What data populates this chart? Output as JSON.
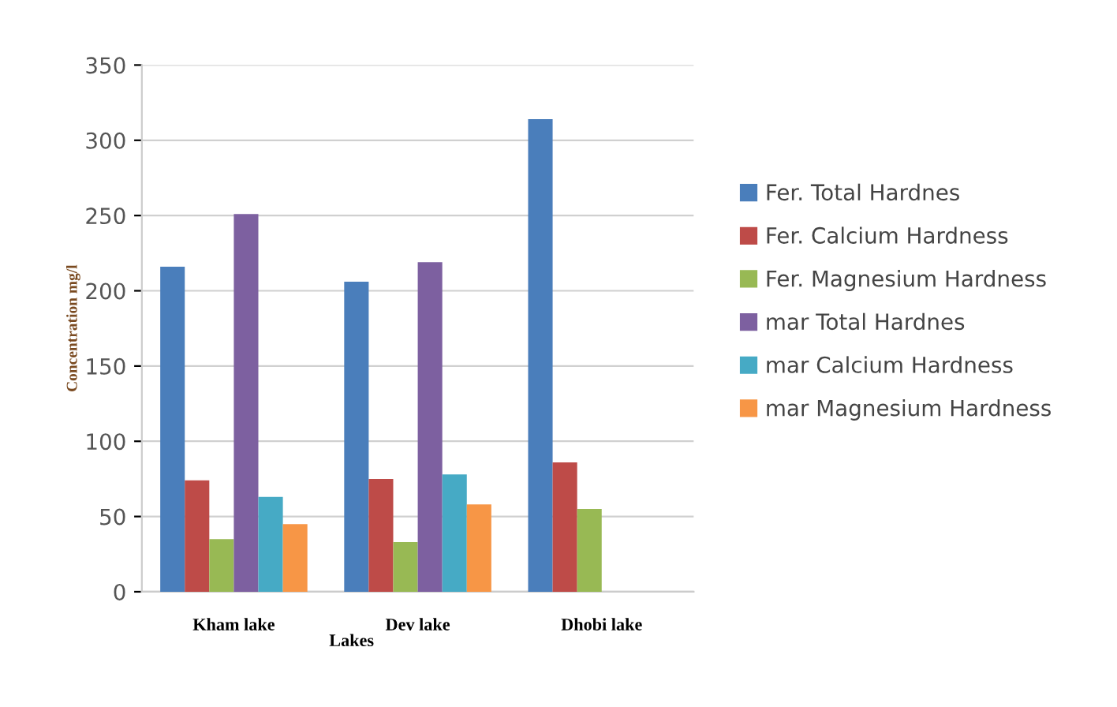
{
  "chart_data": {
    "type": "bar",
    "xlabel": "Lakes",
    "ylabel": "Concentration mg/l",
    "categories": [
      "Kham lake",
      "Dev lake",
      "Dhobi lake"
    ],
    "series": [
      {
        "name": "Fer. Total Hardnes",
        "color": "#4a7ebb",
        "values": [
          216,
          206,
          314
        ]
      },
      {
        "name": "Fer. Calcium Hardness",
        "color": "#be4b48",
        "values": [
          74,
          75,
          86
        ]
      },
      {
        "name": "Fer. Magnesium Hardness",
        "color": "#98b954",
        "values": [
          35,
          33,
          55
        ]
      },
      {
        "name": "mar Total Hardnes",
        "color": "#7d60a0",
        "values": [
          251,
          219,
          null
        ]
      },
      {
        "name": "mar Calcium Hardness",
        "color": "#46aac5",
        "values": [
          63,
          78,
          null
        ]
      },
      {
        "name": "mar Magnesium Hardness",
        "color": "#f79646",
        "values": [
          45,
          58,
          null
        ]
      }
    ],
    "ylim": [
      0,
      350
    ],
    "yticks": [
      0,
      50,
      100,
      150,
      200,
      250,
      300,
      350
    ],
    "grid": "y",
    "legend": "right"
  }
}
